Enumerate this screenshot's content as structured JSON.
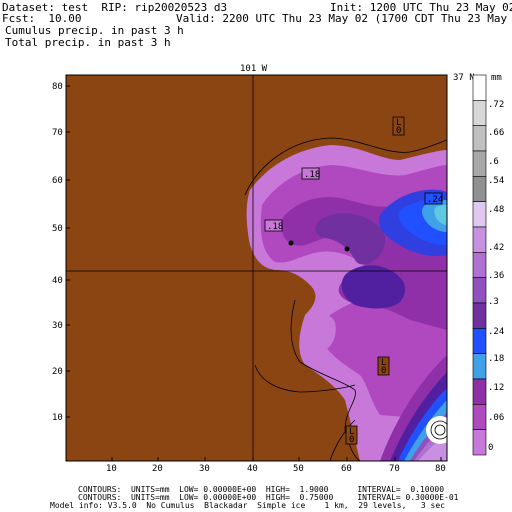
{
  "header": {
    "dataset": "Dataset: test  RIP: rip20020523 d3",
    "init": "Init: 1200 UTC Thu 23 May 02",
    "fcst": "Fcst:  10.00",
    "valid": "Valid: 2200 UTC Thu 23 May 02 (1700 CDT Thu 23 May 02)",
    "field1": "Cumulus precip. in past 3 h",
    "field2": "Total precip. in past 3 h"
  },
  "map": {
    "top_label": "101 W",
    "corner_label": "37 N",
    "y_ticks": [
      "10",
      "20",
      "30",
      "40",
      "50",
      "60",
      "70",
      "80"
    ],
    "x_ticks": [
      "10",
      "20",
      "30",
      "40",
      "50",
      "60",
      "70",
      "80"
    ],
    "contour_labels": [
      {
        "text": "L\n0",
        "id": "lo-box-top"
      },
      {
        "text": ".18",
        "id": "label-18-a"
      },
      {
        "text": ".18",
        "id": "label-18-b"
      },
      {
        "text": ".24",
        "id": "label-24"
      },
      {
        "text": "L\n0",
        "id": "lo-box-mid"
      },
      {
        "text": "L\n0",
        "id": "lo-box-bottom"
      }
    ]
  },
  "colorbar": {
    "unit": "mm",
    "labels": [
      ".72",
      ".66",
      ".6",
      ".54",
      ".48",
      ".42",
      ".36",
      ".3",
      ".24",
      ".18",
      ".12",
      ".06",
      "0"
    ],
    "colors": [
      "#ffffff",
      "#d8d8d8",
      "#c0c0c0",
      "#a8a8a8",
      "#909090",
      "#e0c8f0",
      "#c890e0",
      "#b070d0",
      "#9050c0",
      "#7030a0",
      "#5020a0",
      "#3040e0",
      "#2050ff",
      "#40a0e8",
      "#60c8e0",
      "#9030a8",
      "#b048c0",
      "#c878d8",
      "#8b4513"
    ]
  },
  "footer": {
    "line1": "CONTOURS:  UNITS=mm  LOW= 0.00000E+00  HIGH=  1.9000      INTERVAL=  0.10000",
    "line2": "CONTOURS:  UNITS=mm  LOW= 0.00000E+00  HIGH=  0.75000     INTERVAL= 0.30000E-01",
    "line3": "Model info: V3.5.0  No Cumulus  Blackadar  Simple ice    1 km,  29 levels,   3 sec"
  }
}
